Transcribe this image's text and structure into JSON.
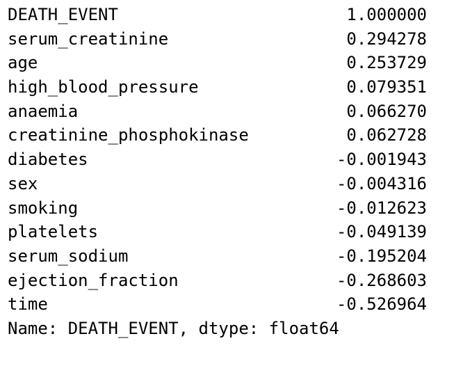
{
  "series": {
    "rows": [
      {
        "name": "DEATH_EVENT",
        "value": "1.000000"
      },
      {
        "name": "serum_creatinine",
        "value": "0.294278"
      },
      {
        "name": "age",
        "value": "0.253729"
      },
      {
        "name": "high_blood_pressure",
        "value": "0.079351"
      },
      {
        "name": "anaemia",
        "value": "0.066270"
      },
      {
        "name": "creatinine_phosphokinase",
        "value": "0.062728"
      },
      {
        "name": "diabetes",
        "value": "-0.001943"
      },
      {
        "name": "sex",
        "value": "-0.004316"
      },
      {
        "name": "smoking",
        "value": "-0.012623"
      },
      {
        "name": "platelets",
        "value": "-0.049139"
      },
      {
        "name": "serum_sodium",
        "value": "-0.195204"
      },
      {
        "name": "ejection_fraction",
        "value": "-0.268603"
      },
      {
        "name": "time",
        "value": "-0.526964"
      }
    ],
    "footer": "Name: DEATH_EVENT, dtype: float64"
  }
}
